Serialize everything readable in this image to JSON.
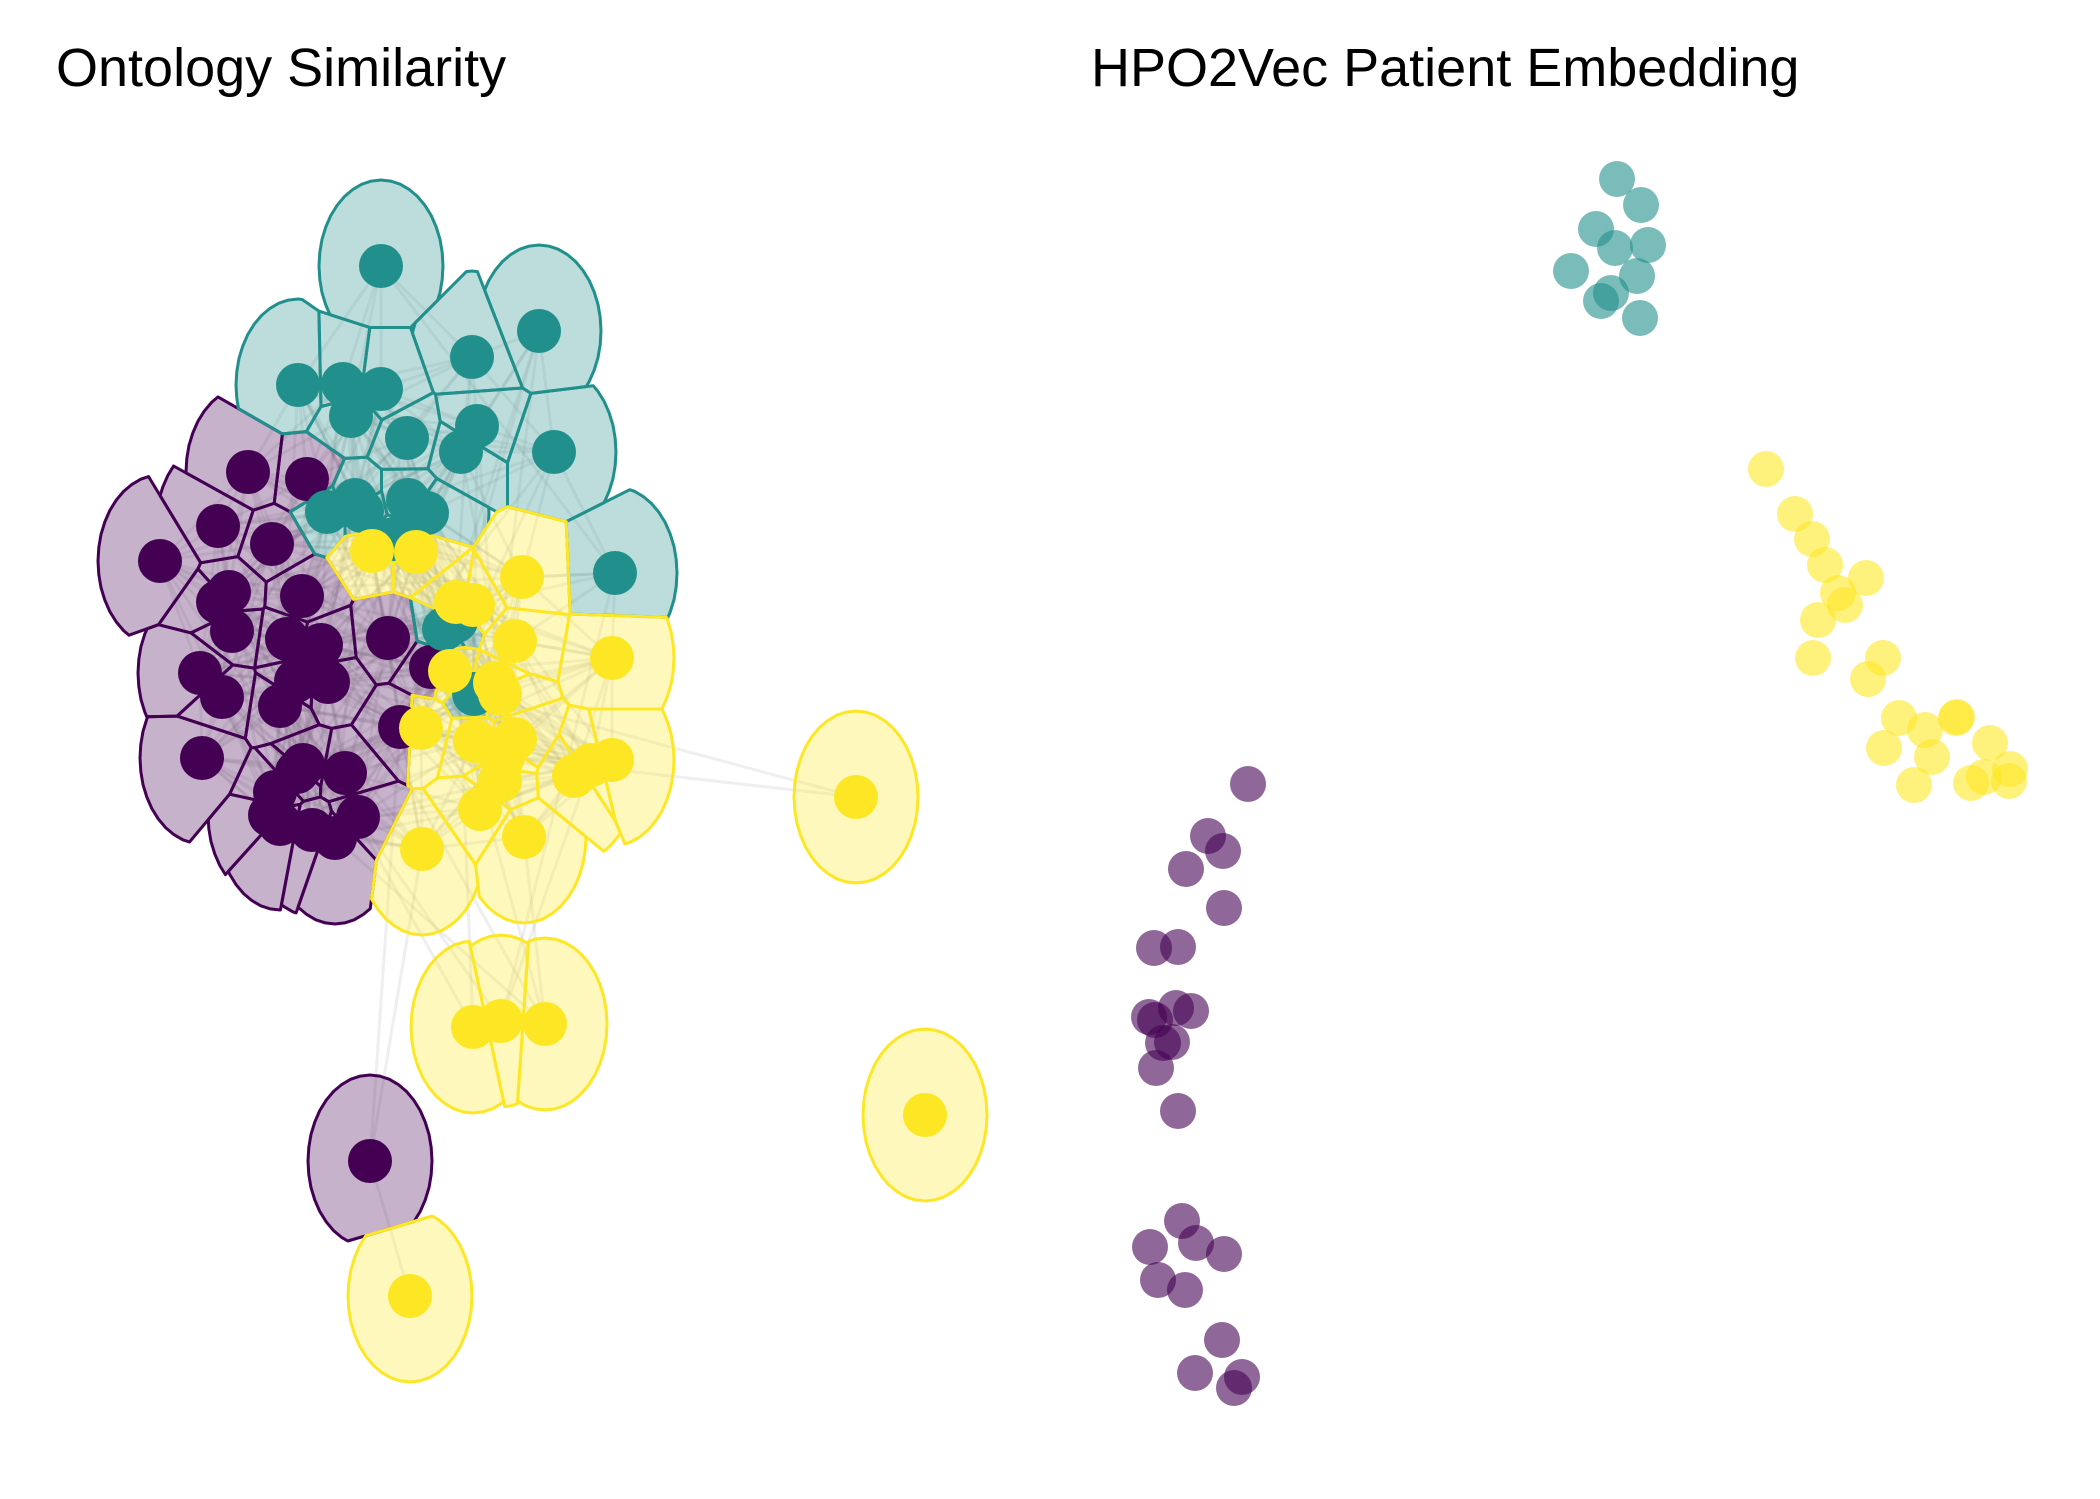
{
  "colors": {
    "cluster1": "#440154",
    "cluster2": "#21908C",
    "cluster3": "#FDE725"
  },
  "chart_data": [
    {
      "type": "scatter",
      "title": "Ontology Similarity",
      "axes": "none",
      "grid": false,
      "legend": "none",
      "cells": "voronoi",
      "xlim": [
        50,
        1000
      ],
      "ylim": [
        160,
        1400
      ],
      "series": [
        {
          "cluster": 1,
          "color": "#440154",
          "x": [
            160,
            218,
            248,
            307,
            272,
            218,
            302,
            229,
            287,
            232,
            296,
            200,
            222,
            328,
            388,
            280,
            321,
            400,
            431,
            297,
            280,
            358,
            345,
            303,
            312,
            202,
            275,
            270,
            370,
            335
          ],
          "y": [
            561,
            526,
            472,
            479,
            544,
            602,
            596,
            592,
            639,
            631,
            681,
            673,
            697,
            682,
            638,
            706,
            645,
            727,
            667,
            772,
            824,
            817,
            773,
            765,
            830,
            758,
            792,
            815,
            1161,
            838
          ]
        },
        {
          "cluster": 2,
          "color": "#21908C",
          "x": [
            381,
            539,
            298,
            472,
            381,
            554,
            351,
            343,
            407,
            477,
            408,
            362,
            427,
            461,
            615,
            327,
            355,
            456,
            474,
            394,
            444
          ],
          "y": [
            266,
            331,
            385,
            357,
            389,
            452,
            416,
            384,
            438,
            426,
            500,
            511,
            513,
            452,
            573,
            512,
            500,
            621,
            694,
            539,
            629
          ]
        },
        {
          "cluster": 3,
          "color": "#FDE725",
          "x": [
            372,
            416,
            456,
            522,
            421,
            473,
            515,
            612,
            450,
            515,
            422,
            612,
            501,
            545,
            410,
            480,
            473,
            475,
            500,
            495,
            503,
            574,
            500,
            591,
            856,
            925,
            524
          ],
          "y": [
            551,
            552,
            602,
            577,
            728,
            605,
            641,
            658,
            671,
            739,
            849,
            760,
            1021,
            1024,
            1296,
            809,
            1027,
            741,
            694,
            683,
            757,
            776,
            781,
            765,
            797,
            1115,
            837
          ]
        }
      ]
    },
    {
      "type": "scatter",
      "title": "HPO2Vec Patient Embedding",
      "axes": "none",
      "grid": false,
      "legend": "none",
      "xlim": [
        1080,
        2070
      ],
      "ylim": [
        140,
        1420
      ],
      "series": [
        {
          "cluster": 1,
          "color": "#440154",
          "x": [
            1248,
            1208,
            1223,
            1186,
            1224,
            1178,
            1154,
            1191,
            1149,
            1172,
            1156,
            1176,
            1178,
            1163,
            1155,
            1150,
            1182,
            1185,
            1158,
            1196,
            1224,
            1222,
            1195,
            1242,
            1234
          ],
          "y": [
            784,
            836,
            851,
            869,
            908,
            947,
            948,
            1011,
            1017,
            1042,
            1068,
            1008,
            1111,
            1043,
            1020,
            1247,
            1221,
            1290,
            1280,
            1243,
            1254,
            1340,
            1373,
            1377,
            1388
          ]
        },
        {
          "cluster": 2,
          "color": "#21908C",
          "x": [
            1617,
            1641,
            1596,
            1615,
            1648,
            1571,
            1637,
            1601,
            1640,
            1611
          ],
          "y": [
            179,
            205,
            229,
            248,
            245,
            271,
            276,
            301,
            318,
            293
          ]
        },
        {
          "cluster": 3,
          "color": "#FDE725",
          "x": [
            1766,
            1795,
            1812,
            1825,
            1838,
            1866,
            1845,
            1818,
            1883,
            1813,
            1899,
            1868,
            1957,
            1956,
            1990,
            2010,
            2009,
            1971,
            1932,
            1984,
            1914,
            1925,
            1884
          ],
          "y": [
            469,
            514,
            539,
            565,
            593,
            578,
            605,
            620,
            658,
            658,
            718,
            679,
            717,
            718,
            743,
            769,
            781,
            783,
            757,
            777,
            785,
            730,
            748
          ]
        }
      ]
    }
  ]
}
